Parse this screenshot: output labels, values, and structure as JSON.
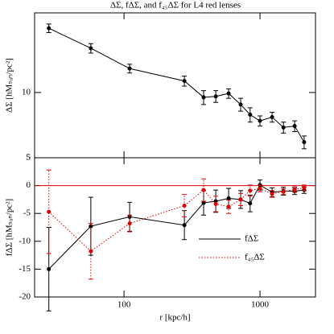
{
  "chart_data": [
    {
      "type": "line",
      "title": "ΔΣ, fΔΣ, and f₄₅ΔΣ for L4 red lenses",
      "ylabel": "ΔΣ [hMₛᵤₙ/pc²]",
      "xscale": "log",
      "yscale": "log",
      "xlim": [
        22,
        2560
      ],
      "ylim": [
        5,
        23.3
      ],
      "yticks": [
        5,
        10
      ],
      "x": [
        28,
        57,
        110,
        278,
        385,
        473,
        588,
        721,
        846,
        1000,
        1228,
        1488,
        1799,
        2112
      ],
      "series": [
        {
          "color": "#000000",
          "linestyle": "solid",
          "values": [
            19.8,
            16.0,
            12.9,
            11.3,
            9.5,
            9.6,
            9.9,
            8.8,
            7.9,
            7.4,
            7.7,
            6.9,
            7.0,
            5.9
          ],
          "errors": [
            0.9,
            0.8,
            0.6,
            0.6,
            0.7,
            0.6,
            0.5,
            0.6,
            0.6,
            0.4,
            0.4,
            0.4,
            0.4,
            0.4
          ]
        }
      ]
    },
    {
      "type": "line",
      "xlabel": "r [kpc/h]",
      "ylabel": "fΔΣ [hMₛᵤₙ/pc²]",
      "xscale": "log",
      "xlim": [
        22,
        2560
      ],
      "xticks": [
        100,
        1000
      ],
      "ylim": [
        -20,
        5
      ],
      "yticks": [
        -20,
        -15,
        -10,
        -5,
        0,
        5
      ],
      "hline": 0,
      "hline_color": "#e00000",
      "legend": "lower right",
      "x": [
        28,
        57,
        110,
        278,
        385,
        473,
        588,
        721,
        846,
        1000,
        1228,
        1488,
        1799,
        2112
      ],
      "series": [
        {
          "name": "fΔΣ",
          "color": "#000000",
          "linestyle": "solid",
          "values": [
            -15,
            -7.3,
            -5.6,
            -7.1,
            -3.1,
            -2.8,
            -2.3,
            -2.5,
            -3.2,
            0.1,
            -1.2,
            -1.0,
            -1.0,
            -0.8
          ],
          "errors": [
            7.5,
            5.2,
            2.6,
            2.6,
            2.2,
            2.0,
            1.8,
            1.6,
            1.5,
            0.9,
            0.8,
            0.7,
            0.6,
            0.6
          ]
        },
        {
          "name": "f₄₅ΔΣ",
          "color": "#e00000",
          "linestyle": "dotted",
          "values": [
            -4.7,
            -11.8,
            -6.8,
            -3.6,
            -0.8,
            -3.3,
            -3.8,
            -2.5,
            -0.9,
            -0.5,
            -1.5,
            -1.1,
            -0.7,
            -0.4
          ],
          "errors": [
            7.5,
            5.0,
            1.5,
            2.0,
            2.0,
            1.4,
            1.2,
            1.1,
            1.0,
            0.6,
            0.6,
            0.5,
            0.5,
            0.5
          ]
        }
      ]
    }
  ]
}
